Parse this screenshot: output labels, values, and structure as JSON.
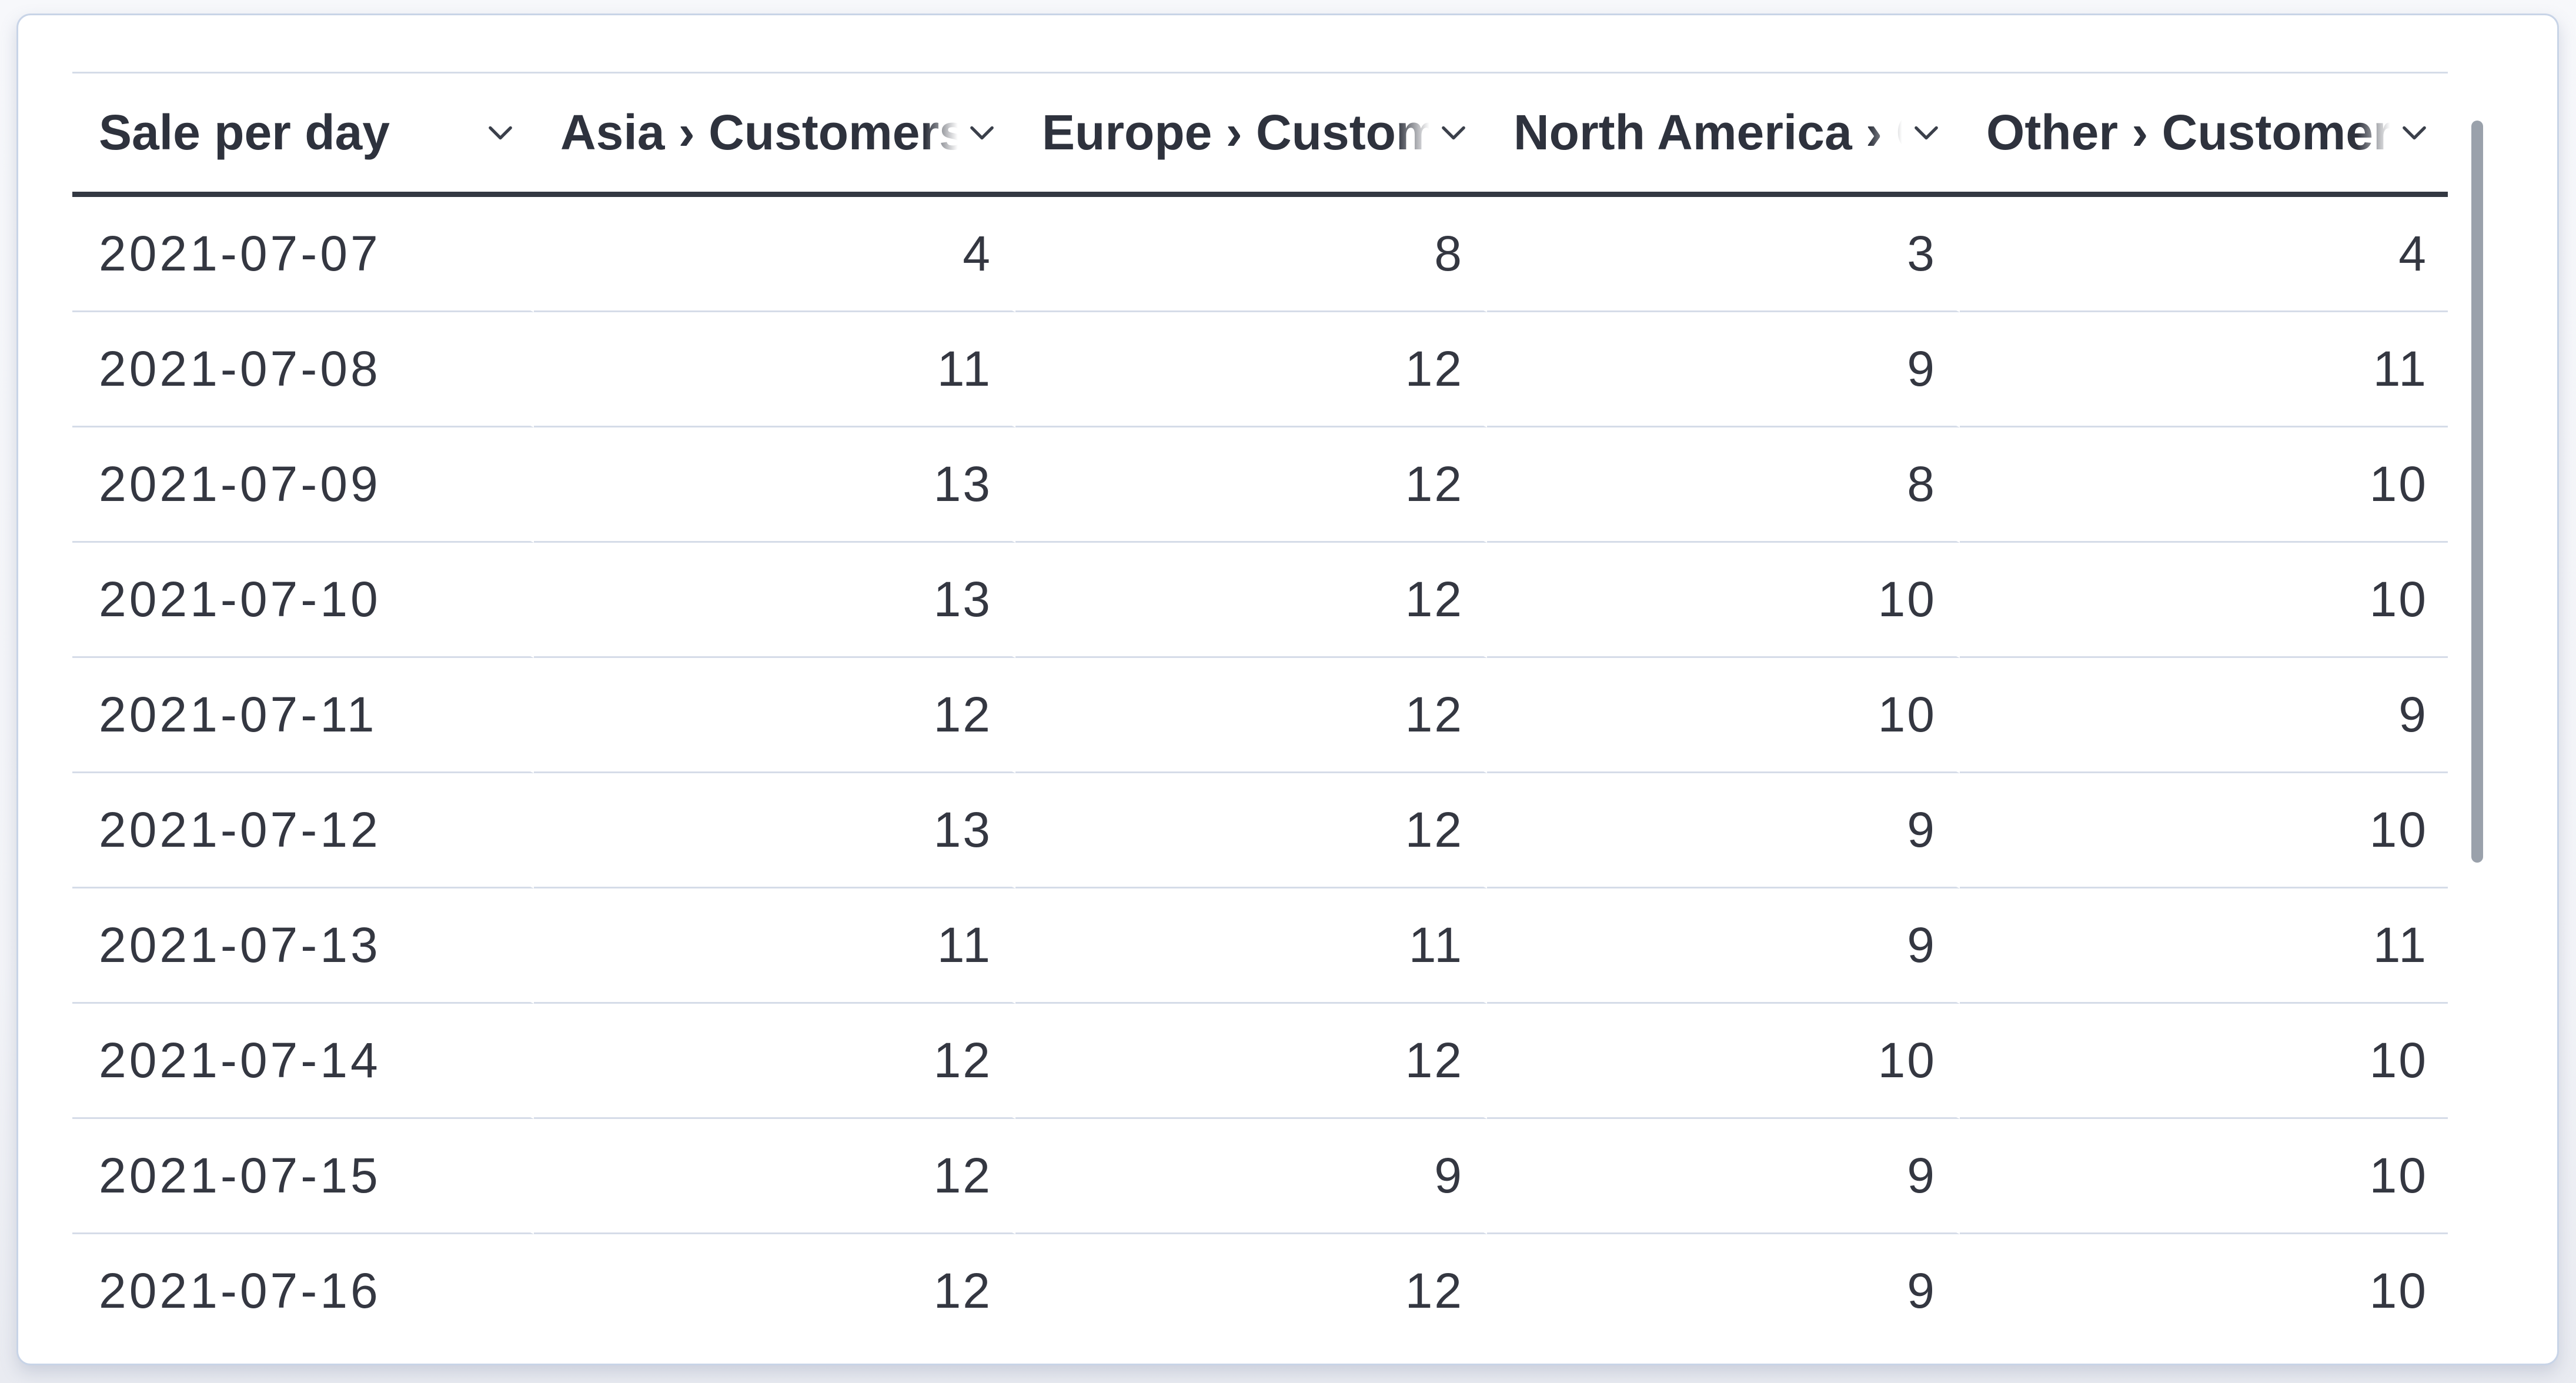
{
  "panel": {
    "type": "datatable",
    "scrollbar": {
      "thumb_visible": true
    }
  },
  "icons": {
    "column_menu": "chevron-down-icon"
  },
  "colors": {
    "card_border": "#c8d4e7",
    "header_underline": "#333842",
    "row_divider": "#d5dce8",
    "header_text": "#2e323d",
    "cell_text": "#343741",
    "scrollbar_thumb": "#9aa1ab",
    "card_background": "#ffffff",
    "page_background": "#f3f4f8"
  },
  "table": {
    "columns": [
      {
        "id": "date",
        "label": "Sale per day",
        "align": "left"
      },
      {
        "id": "asia",
        "label": "Asia › Customers",
        "align": "right"
      },
      {
        "id": "europe",
        "label": "Europe › Customers",
        "align": "right"
      },
      {
        "id": "north_america",
        "label": "North America › Customers",
        "align": "right"
      },
      {
        "id": "other",
        "label": "Other › Customers",
        "align": "right"
      }
    ],
    "rows": [
      {
        "date": "2021-07-07",
        "values": [
          4,
          8,
          3,
          4
        ]
      },
      {
        "date": "2021-07-08",
        "values": [
          11,
          12,
          9,
          11
        ]
      },
      {
        "date": "2021-07-09",
        "values": [
          13,
          12,
          8,
          10
        ]
      },
      {
        "date": "2021-07-10",
        "values": [
          13,
          12,
          10,
          10
        ]
      },
      {
        "date": "2021-07-11",
        "values": [
          12,
          12,
          10,
          9
        ]
      },
      {
        "date": "2021-07-12",
        "values": [
          13,
          12,
          9,
          10
        ]
      },
      {
        "date": "2021-07-13",
        "values": [
          11,
          11,
          9,
          11
        ]
      },
      {
        "date": "2021-07-14",
        "values": [
          12,
          12,
          10,
          10
        ]
      },
      {
        "date": "2021-07-15",
        "values": [
          12,
          9,
          9,
          10
        ]
      },
      {
        "date": "2021-07-16",
        "values": [
          12,
          12,
          9,
          10
        ]
      }
    ]
  },
  "chart_data": {
    "type": "table",
    "title": "Sale per day",
    "categories": [
      "2021-07-07",
      "2021-07-08",
      "2021-07-09",
      "2021-07-10",
      "2021-07-11",
      "2021-07-12",
      "2021-07-13",
      "2021-07-14",
      "2021-07-15",
      "2021-07-16"
    ],
    "series": [
      {
        "name": "Asia › Customers",
        "values": [
          4,
          11,
          13,
          13,
          12,
          13,
          11,
          12,
          12,
          12
        ]
      },
      {
        "name": "Europe › Customers",
        "values": [
          8,
          12,
          12,
          12,
          12,
          12,
          11,
          12,
          9,
          12
        ]
      },
      {
        "name": "North America › Customers",
        "values": [
          3,
          9,
          8,
          10,
          10,
          9,
          9,
          10,
          9,
          9
        ]
      },
      {
        "name": "Other › Customers",
        "values": [
          4,
          11,
          10,
          10,
          9,
          10,
          11,
          10,
          10,
          10
        ]
      }
    ]
  }
}
